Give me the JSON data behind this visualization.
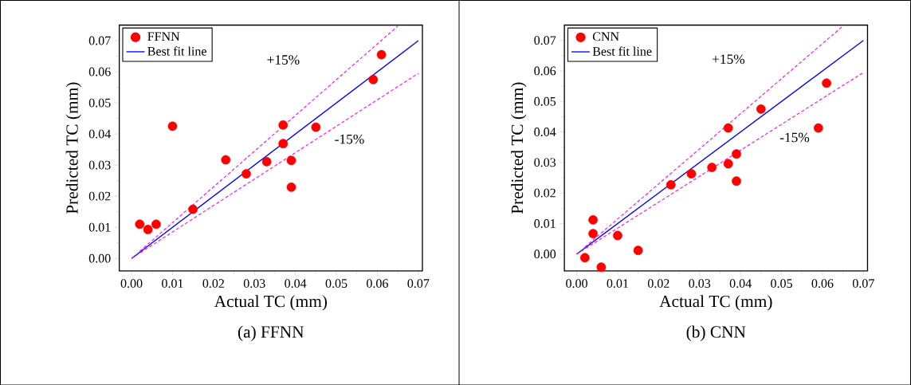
{
  "chart_data": [
    {
      "type": "scatter",
      "xlabel": "Actual TC (mm)",
      "ylabel": "Predicted TC (mm)",
      "annotations": [
        "(a) FFNN"
      ],
      "legend": "top left",
      "marker": "circle",
      "xlim": [
        -0.003,
        0.071
      ],
      "ylim": [
        -0.004,
        0.075
      ],
      "xticks": [
        {
          "value": 0,
          "label": "0.00"
        },
        {
          "value": 0.01,
          "label": "0.01"
        },
        {
          "value": 0.02,
          "label": "0.02"
        },
        {
          "value": 0.03,
          "label": "0.03"
        },
        {
          "value": 0.04,
          "label": "0.04"
        },
        {
          "value": 0.05,
          "label": "0.05"
        },
        {
          "value": 0.06,
          "label": "0.06"
        },
        {
          "value": 0.07,
          "label": "0.07"
        }
      ],
      "yticks": [
        {
          "value": 0,
          "label": "0.00"
        },
        {
          "value": 0.01,
          "label": "0.01"
        },
        {
          "value": 0.02,
          "label": "0.02"
        },
        {
          "value": 0.03,
          "label": "0.03"
        },
        {
          "value": 0.04,
          "label": "0.04"
        },
        {
          "value": 0.05,
          "label": "0.05"
        },
        {
          "value": 0.06,
          "label": "0.06"
        },
        {
          "value": 0.07,
          "label": "0.07"
        }
      ],
      "series": [
        {
          "name": "FFNN",
          "color": "#ff0000",
          "x": [
            0.002,
            0.004,
            0.006,
            0.01,
            0.015,
            0.023,
            0.028,
            0.033,
            0.037,
            0.037,
            0.039,
            0.039,
            0.045,
            0.059,
            0.061
          ],
          "values": [
            0.011,
            0.0093,
            0.011,
            0.0425,
            0.0158,
            0.0317,
            0.0272,
            0.0311,
            0.0429,
            0.0369,
            0.0315,
            0.0229,
            0.0422,
            0.0575,
            0.0655
          ]
        },
        {
          "name": "Best fit line",
          "type": "line",
          "marker": "none",
          "color": "#0000ff",
          "line_style": "solid",
          "x": [
            0,
            0.07
          ],
          "values": [
            0,
            0.07
          ]
        },
        {
          "name": "+15%",
          "type": "line",
          "marker": "none",
          "color": "#ff00ff",
          "line_style": "dashed",
          "x": [
            0.002,
            0.065
          ],
          "values": [
            0.0023,
            0.0747
          ]
        },
        {
          "name": "-15%",
          "type": "line",
          "marker": "none",
          "color": "#ff00ff",
          "line_style": "dashed",
          "x": [
            0,
            0.07
          ],
          "values": [
            0,
            0.0595
          ]
        }
      ]
    },
    {
      "type": "scatter",
      "xlabel": "Actual TC (mm)",
      "ylabel": "Predicted TC (mm)",
      "annotations": [
        "(b) CNN"
      ],
      "legend": "top left",
      "marker": "circle",
      "xlim": [
        -0.003,
        0.071
      ],
      "ylim": [
        -0.0055,
        0.075
      ],
      "xticks": [
        {
          "value": 0,
          "label": "0.00"
        },
        {
          "value": 0.01,
          "label": "0.01"
        },
        {
          "value": 0.02,
          "label": "0.02"
        },
        {
          "value": 0.03,
          "label": "0.03"
        },
        {
          "value": 0.04,
          "label": "0.04"
        },
        {
          "value": 0.05,
          "label": "0.05"
        },
        {
          "value": 0.06,
          "label": "0.06"
        },
        {
          "value": 0.07,
          "label": "0.07"
        }
      ],
      "yticks": [
        {
          "value": 0,
          "label": "0.00"
        },
        {
          "value": 0.01,
          "label": "0.01"
        },
        {
          "value": 0.02,
          "label": "0.02"
        },
        {
          "value": 0.03,
          "label": "0.03"
        },
        {
          "value": 0.04,
          "label": "0.04"
        },
        {
          "value": 0.05,
          "label": "0.05"
        },
        {
          "value": 0.06,
          "label": "0.06"
        },
        {
          "value": 0.07,
          "label": "0.07"
        }
      ],
      "series": [
        {
          "name": "CNN",
          "color": "#ff0000",
          "x": [
            0.002,
            0.004,
            0.004,
            0.006,
            0.01,
            0.015,
            0.023,
            0.028,
            0.033,
            0.037,
            0.037,
            0.039,
            0.039,
            0.045,
            0.059,
            0.061
          ],
          "values": [
            -0.0012,
            0.0112,
            0.0067,
            -0.0043,
            0.0061,
            0.0012,
            0.0227,
            0.0263,
            0.0284,
            0.0413,
            0.0296,
            0.0328,
            0.0239,
            0.0475,
            0.0413,
            0.056
          ]
        },
        {
          "name": "Best fit line",
          "type": "line",
          "marker": "none",
          "color": "#0000ff",
          "line_style": "solid",
          "x": [
            0,
            0.07
          ],
          "values": [
            0,
            0.07
          ]
        },
        {
          "name": "+15%",
          "type": "line",
          "marker": "none",
          "color": "#ff00ff",
          "line_style": "dashed",
          "x": [
            0.002,
            0.065
          ],
          "values": [
            0.0023,
            0.0747
          ]
        },
        {
          "name": "-15%",
          "type": "line",
          "marker": "none",
          "color": "#ff00ff",
          "line_style": "dashed",
          "x": [
            0,
            0.07
          ],
          "values": [
            0,
            0.0595
          ]
        }
      ]
    }
  ]
}
